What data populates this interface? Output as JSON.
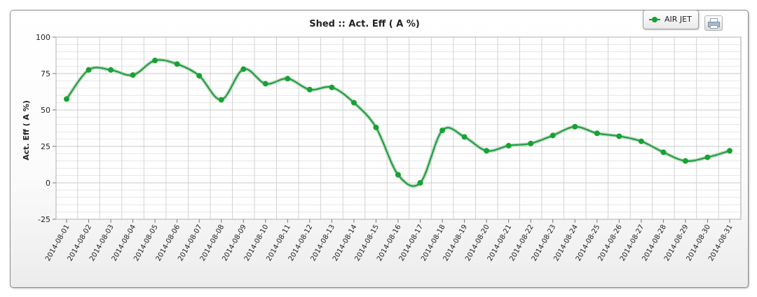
{
  "chart_data": {
    "type": "line",
    "title": "Shed :: Act. Eff ( A %)",
    "xlabel": "",
    "ylabel": "Act. Eff ( A %)",
    "ylim": [
      -25,
      100
    ],
    "yticks": [
      "-25",
      "0",
      "25",
      "50",
      "75",
      "100"
    ],
    "grid": true,
    "legend_position": "top-right",
    "categories": [
      "2014-08-01",
      "2014-08-02",
      "2014-08-03",
      "2014-08-04",
      "2014-08-05",
      "2014-08-06",
      "2014-08-07",
      "2014-08-08",
      "2014-08-09",
      "2014-08-10",
      "2014-08-11",
      "2014-08-12",
      "2014-08-13",
      "2014-08-14",
      "2014-08-15",
      "2014-08-16",
      "2014-08-17",
      "2014-08-18",
      "2014-08-19",
      "2014-08-20",
      "2014-08-21",
      "2014-08-22",
      "2014-08-23",
      "2014-08-24",
      "2014-08-25",
      "2014-08-26",
      "2014-08-27",
      "2014-08-28",
      "2014-08-29",
      "2014-08-30",
      "2014-08-31"
    ],
    "series": [
      {
        "name": "AIR JET",
        "color": "#15a331",
        "values": [
          57.5,
          77.5,
          77.5,
          74,
          84,
          81.5,
          73.5,
          57,
          78,
          68,
          71.5,
          64,
          65.5,
          55,
          38,
          5.5,
          0,
          36,
          31.5,
          22,
          25.5,
          27,
          32.5,
          38.5,
          34,
          32,
          28.5,
          21,
          15,
          17.5,
          22
        ]
      }
    ]
  },
  "legend": {
    "label": "AIR JET"
  },
  "toolbar": {
    "print_icon": "printer-icon"
  }
}
